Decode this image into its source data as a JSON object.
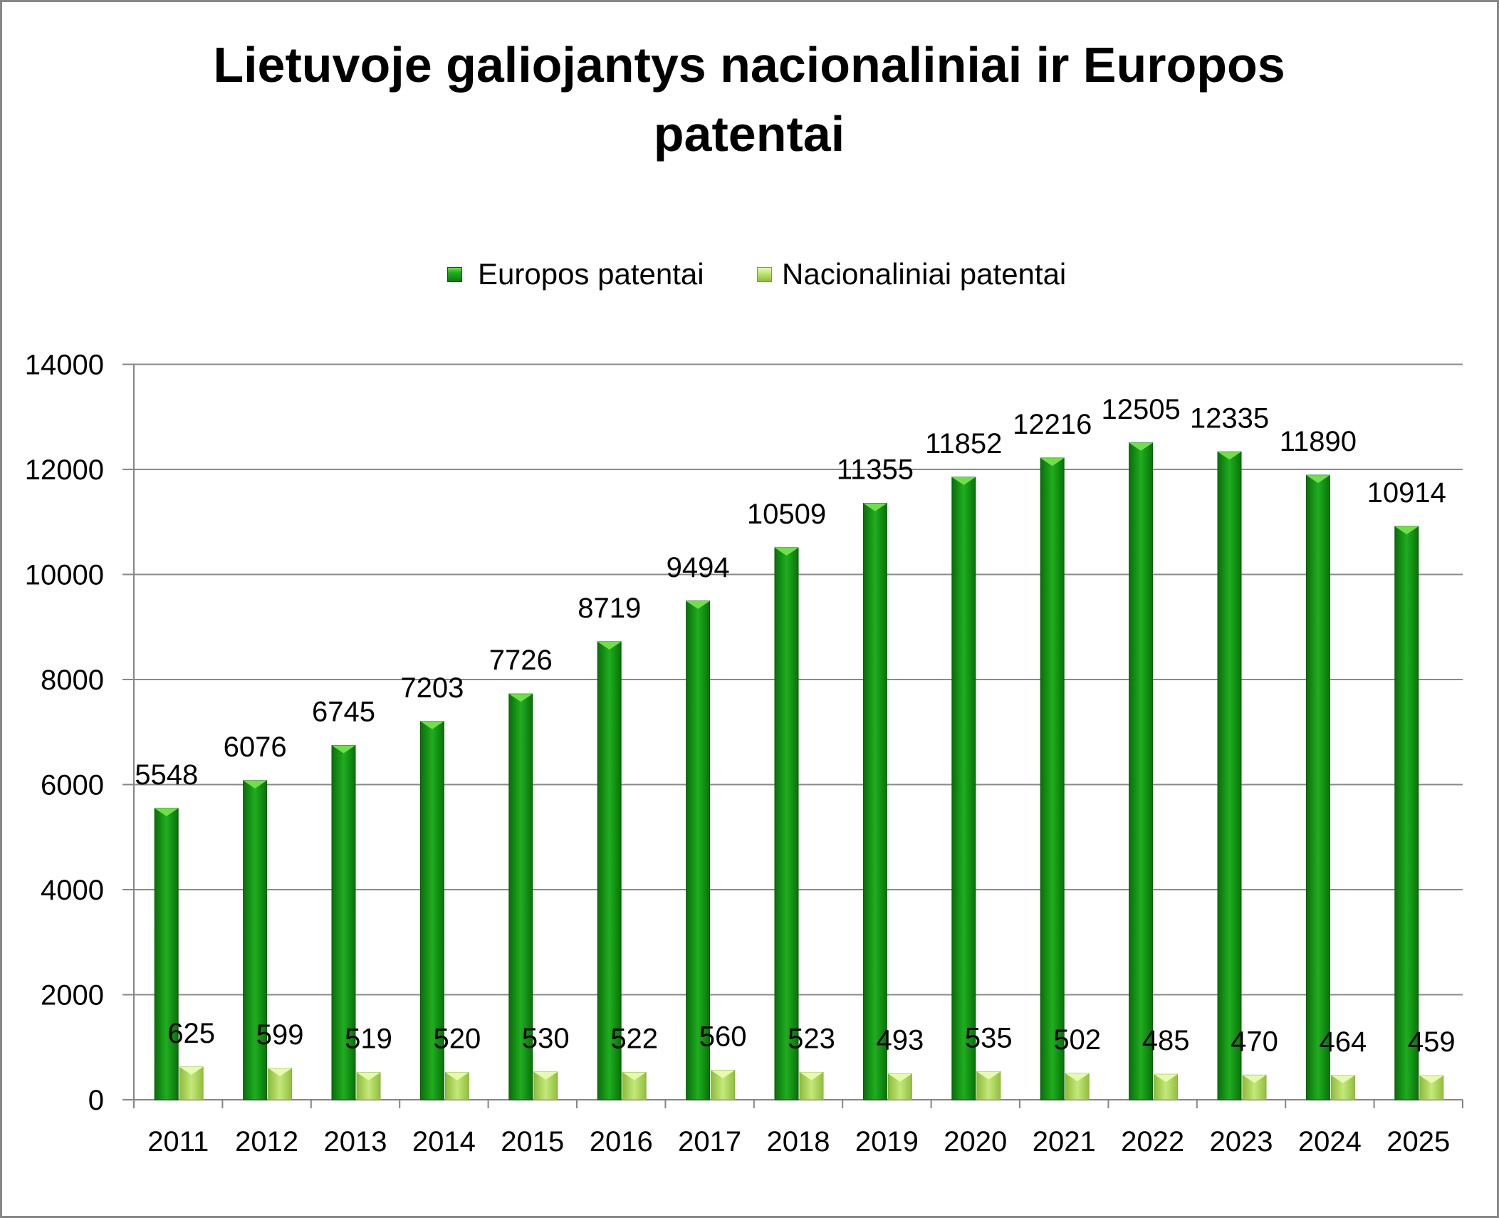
{
  "chart_data": {
    "type": "bar",
    "title": "Lietuvoje galiojantys nacionaliniai ir Europos patentai",
    "categories": [
      "2011",
      "2012",
      "2013",
      "2014",
      "2015",
      "2016",
      "2017",
      "2018",
      "2019",
      "2020",
      "2021",
      "2022",
      "2023",
      "2024",
      "2025"
    ],
    "series": [
      {
        "name": "Europos patentai",
        "color": "#1fae1f",
        "values": [
          5548,
          6076,
          6745,
          7203,
          7726,
          8719,
          9494,
          10509,
          11355,
          11852,
          12216,
          12505,
          12335,
          11890,
          10914
        ]
      },
      {
        "name": "Nacionaliniai patentai",
        "color": "#c4e87a",
        "values": [
          625,
          599,
          519,
          520,
          530,
          522,
          560,
          523,
          493,
          535,
          502,
          485,
          470,
          464,
          459
        ]
      }
    ],
    "yticks": [
      0,
      2000,
      4000,
      6000,
      8000,
      10000,
      12000,
      14000
    ],
    "ylim": [
      0,
      14000
    ],
    "grid": true,
    "data_labels": true,
    "legend": "top"
  }
}
